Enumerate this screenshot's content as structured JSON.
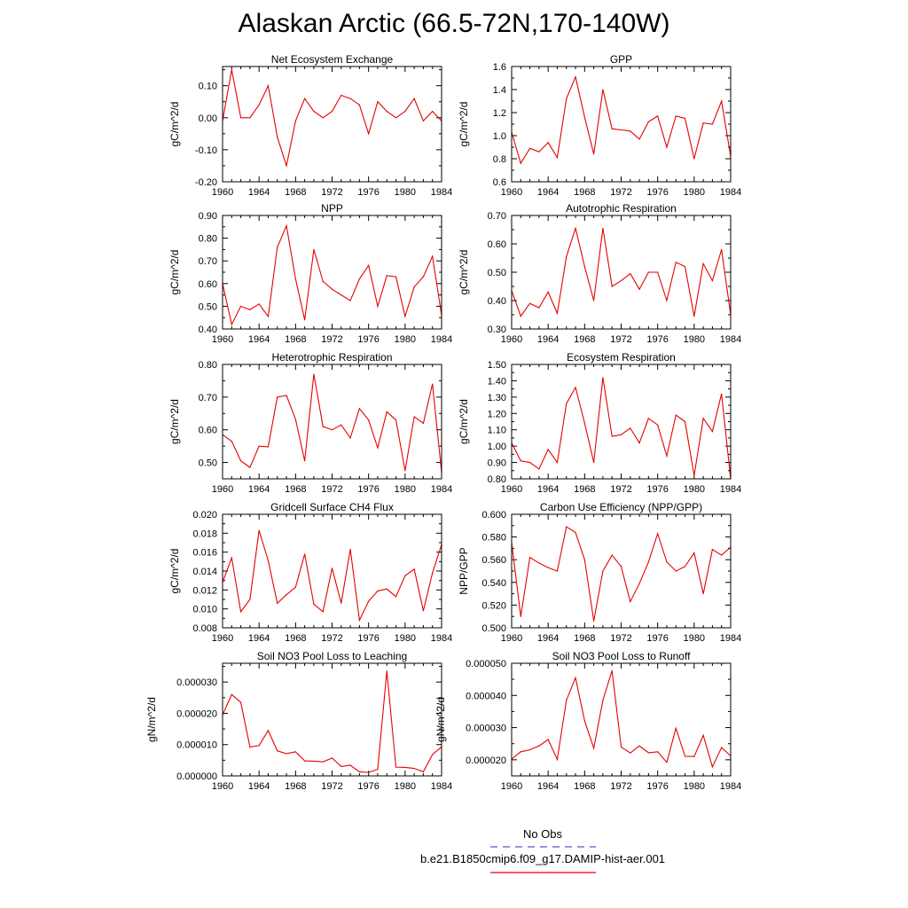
{
  "title": "Alaskan Arctic (66.5-72N,170-140W)",
  "legend": {
    "placement": "bottom",
    "entries": [
      {
        "label": "No Obs",
        "color": "#5555cc",
        "style": "dashed"
      },
      {
        "label": "b.e21.B1850cmip6.f09_g17.DAMIP-hist-aer.001",
        "color": "#e60000",
        "style": "solid"
      }
    ]
  },
  "chart_data": [
    {
      "type": "line",
      "title": "Net Ecosystem Exchange",
      "ylabel": "gC/m^2/d",
      "xlim": [
        1960,
        1984
      ],
      "ylim": [
        -0.2,
        0.16
      ],
      "xticks": [
        "1960",
        "1964",
        "1968",
        "1972",
        "1976",
        "1980",
        "1984"
      ],
      "yticks": [
        "-0.20",
        "-0.10",
        "0.00",
        "0.10"
      ],
      "series": [
        {
          "color": "#e60000",
          "x": [
            1960,
            1961,
            1962,
            1963,
            1964,
            1965,
            1966,
            1967,
            1968,
            1969,
            1970,
            1971,
            1972,
            1973,
            1974,
            1975,
            1976,
            1977,
            1978,
            1979,
            1980,
            1981,
            1982,
            1983,
            1984
          ],
          "values": [
            -0.01,
            0.15,
            0.0,
            0.0,
            0.04,
            0.1,
            -0.06,
            -0.15,
            -0.01,
            0.06,
            0.02,
            0.0,
            0.02,
            0.07,
            0.06,
            0.04,
            -0.05,
            0.05,
            0.02,
            0.0,
            0.02,
            0.06,
            -0.01,
            0.02,
            -0.01
          ]
        }
      ]
    },
    {
      "type": "line",
      "title": "GPP",
      "ylabel": "gC/m^2/d",
      "xlim": [
        1960,
        1984
      ],
      "ylim": [
        0.6,
        1.6
      ],
      "xticks": [
        "1960",
        "1964",
        "1968",
        "1972",
        "1976",
        "1980",
        "1984"
      ],
      "yticks": [
        "0.6",
        "0.8",
        "1.0",
        "1.2",
        "1.4",
        "1.6"
      ],
      "series": [
        {
          "color": "#e60000",
          "x": [
            1960,
            1961,
            1962,
            1963,
            1964,
            1965,
            1966,
            1967,
            1968,
            1969,
            1970,
            1971,
            1972,
            1973,
            1974,
            1975,
            1976,
            1977,
            1978,
            1979,
            1980,
            1981,
            1982,
            1983,
            1984
          ],
          "values": [
            1.03,
            0.76,
            0.89,
            0.86,
            0.94,
            0.81,
            1.32,
            1.51,
            1.16,
            0.84,
            1.4,
            1.06,
            1.05,
            1.04,
            0.97,
            1.12,
            1.17,
            0.9,
            1.17,
            1.15,
            0.8,
            1.11,
            1.1,
            1.3,
            0.82
          ]
        }
      ]
    },
    {
      "type": "line",
      "title": "NPP",
      "ylabel": "gC/m^2/d",
      "xlim": [
        1960,
        1984
      ],
      "ylim": [
        0.4,
        0.9
      ],
      "xticks": [
        "1960",
        "1964",
        "1968",
        "1972",
        "1976",
        "1980",
        "1984"
      ],
      "yticks": [
        "0.40",
        "0.50",
        "0.60",
        "0.70",
        "0.80",
        "0.90"
      ],
      "series": [
        {
          "color": "#e60000",
          "x": [
            1960,
            1961,
            1962,
            1963,
            1964,
            1965,
            1966,
            1967,
            1968,
            1969,
            1970,
            1971,
            1972,
            1973,
            1974,
            1975,
            1976,
            1977,
            1978,
            1979,
            1980,
            1981,
            1982,
            1983,
            1984
          ],
          "values": [
            0.6,
            0.42,
            0.5,
            0.485,
            0.51,
            0.455,
            0.76,
            0.855,
            0.62,
            0.44,
            0.75,
            0.61,
            0.575,
            0.55,
            0.525,
            0.62,
            0.68,
            0.5,
            0.635,
            0.63,
            0.455,
            0.585,
            0.63,
            0.72,
            0.46
          ]
        }
      ]
    },
    {
      "type": "line",
      "title": "Autotrophic Respiration",
      "ylabel": "gC/m^2/d",
      "xlim": [
        1960,
        1984
      ],
      "ylim": [
        0.3,
        0.7
      ],
      "xticks": [
        "1960",
        "1964",
        "1968",
        "1972",
        "1976",
        "1980",
        "1984"
      ],
      "yticks": [
        "0.30",
        "0.40",
        "0.50",
        "0.60",
        "0.70"
      ],
      "series": [
        {
          "color": "#e60000",
          "x": [
            1960,
            1961,
            1962,
            1963,
            1964,
            1965,
            1966,
            1967,
            1968,
            1969,
            1970,
            1971,
            1972,
            1973,
            1974,
            1975,
            1976,
            1977,
            1978,
            1979,
            1980,
            1981,
            1982,
            1983,
            1984
          ],
          "values": [
            0.435,
            0.345,
            0.39,
            0.375,
            0.43,
            0.355,
            0.555,
            0.655,
            0.52,
            0.4,
            0.655,
            0.45,
            0.47,
            0.495,
            0.44,
            0.5,
            0.5,
            0.4,
            0.535,
            0.52,
            0.345,
            0.53,
            0.47,
            0.58,
            0.35
          ]
        }
      ]
    },
    {
      "type": "line",
      "title": "Heterotrophic Respiration",
      "ylabel": "gC/m^2/d",
      "xlim": [
        1960,
        1984
      ],
      "ylim": [
        0.45,
        0.8
      ],
      "xticks": [
        "1960",
        "1964",
        "1968",
        "1972",
        "1976",
        "1980",
        "1984"
      ],
      "yticks": [
        "0.50",
        "0.60",
        "0.70",
        "0.80"
      ],
      "series": [
        {
          "color": "#e60000",
          "x": [
            1960,
            1961,
            1962,
            1963,
            1964,
            1965,
            1966,
            1967,
            1968,
            1969,
            1970,
            1971,
            1972,
            1973,
            1974,
            1975,
            1976,
            1977,
            1978,
            1979,
            1980,
            1981,
            1982,
            1983,
            1984
          ],
          "values": [
            0.585,
            0.565,
            0.505,
            0.485,
            0.55,
            0.548,
            0.7,
            0.705,
            0.632,
            0.505,
            0.77,
            0.61,
            0.6,
            0.615,
            0.575,
            0.665,
            0.63,
            0.545,
            0.655,
            0.63,
            0.475,
            0.64,
            0.62,
            0.74,
            0.47
          ]
        }
      ]
    },
    {
      "type": "line",
      "title": "Ecosystem Respiration",
      "ylabel": "gC/m^2/d",
      "xlim": [
        1960,
        1984
      ],
      "ylim": [
        0.8,
        1.5
      ],
      "xticks": [
        "1960",
        "1964",
        "1968",
        "1972",
        "1976",
        "1980",
        "1984"
      ],
      "yticks": [
        "0.80",
        "0.90",
        "1.00",
        "1.10",
        "1.20",
        "1.30",
        "1.40",
        "1.50"
      ],
      "series": [
        {
          "color": "#e60000",
          "x": [
            1960,
            1961,
            1962,
            1963,
            1964,
            1965,
            1966,
            1967,
            1968,
            1969,
            1970,
            1971,
            1972,
            1973,
            1974,
            1975,
            1976,
            1977,
            1978,
            1979,
            1980,
            1981,
            1982,
            1983,
            1984
          ],
          "values": [
            1.02,
            0.91,
            0.9,
            0.86,
            0.98,
            0.9,
            1.26,
            1.36,
            1.14,
            0.9,
            1.42,
            1.06,
            1.07,
            1.11,
            1.02,
            1.17,
            1.13,
            0.94,
            1.19,
            1.15,
            0.82,
            1.17,
            1.09,
            1.32,
            0.8
          ]
        }
      ]
    },
    {
      "type": "line",
      "title": "Gridcell Surface CH4 Flux",
      "ylabel": "gC/m^2/d",
      "xlim": [
        1960,
        1984
      ],
      "ylim": [
        0.008,
        0.02
      ],
      "xticks": [
        "1960",
        "1964",
        "1968",
        "1972",
        "1976",
        "1980",
        "1984"
      ],
      "yticks": [
        "0.008",
        "0.010",
        "0.012",
        "0.014",
        "0.016",
        "0.018",
        "0.020"
      ],
      "series": [
        {
          "color": "#e60000",
          "x": [
            1960,
            1961,
            1962,
            1963,
            1964,
            1965,
            1966,
            1967,
            1968,
            1969,
            1970,
            1971,
            1972,
            1973,
            1974,
            1975,
            1976,
            1977,
            1978,
            1979,
            1980,
            1981,
            1982,
            1983,
            1984
          ],
          "values": [
            0.0128,
            0.0154,
            0.0097,
            0.011,
            0.0183,
            0.0151,
            0.0106,
            0.0115,
            0.0123,
            0.0158,
            0.0105,
            0.0097,
            0.0143,
            0.0106,
            0.0163,
            0.0088,
            0.0108,
            0.0119,
            0.0121,
            0.0113,
            0.0135,
            0.0142,
            0.0098,
            0.0138,
            0.0168
          ]
        }
      ]
    },
    {
      "type": "line",
      "title": "Carbon Use Efficiency (NPP/GPP)",
      "ylabel": "NPP/GPP",
      "xlim": [
        1960,
        1984
      ],
      "ylim": [
        0.5,
        0.6
      ],
      "xticks": [
        "1960",
        "1964",
        "1968",
        "1972",
        "1976",
        "1980",
        "1984"
      ],
      "yticks": [
        "0.500",
        "0.520",
        "0.540",
        "0.560",
        "0.580",
        "0.600"
      ],
      "series": [
        {
          "color": "#e60000",
          "x": [
            1960,
            1961,
            1962,
            1963,
            1964,
            1965,
            1966,
            1967,
            1968,
            1969,
            1970,
            1971,
            1972,
            1973,
            1974,
            1975,
            1976,
            1977,
            1978,
            1979,
            1980,
            1981,
            1982,
            1983,
            1984
          ],
          "values": [
            0.575,
            0.51,
            0.562,
            0.557,
            0.553,
            0.55,
            0.589,
            0.584,
            0.56,
            0.506,
            0.55,
            0.564,
            0.554,
            0.523,
            0.539,
            0.558,
            0.583,
            0.558,
            0.55,
            0.554,
            0.566,
            0.53,
            0.569,
            0.564,
            0.571
          ]
        }
      ]
    },
    {
      "type": "line",
      "title": "Soil NO3 Pool Loss to Leaching",
      "ylabel": "gN/m^2/d",
      "xlim": [
        1960,
        1984
      ],
      "ylim": [
        0.0,
        3.6e-05
      ],
      "xticks": [
        "1960",
        "1964",
        "1968",
        "1972",
        "1976",
        "1980",
        "1984"
      ],
      "yticks": [
        "0.000000",
        "0.000010",
        "0.000020",
        "0.000030"
      ],
      "series": [
        {
          "color": "#e60000",
          "x": [
            1960,
            1961,
            1962,
            1963,
            1964,
            1965,
            1966,
            1967,
            1968,
            1969,
            1970,
            1971,
            1972,
            1973,
            1974,
            1975,
            1976,
            1977,
            1978,
            1979,
            1980,
            1981,
            1982,
            1983,
            1984
          ],
          "values": [
            1.95e-05,
            2.6e-05,
            2.35e-05,
            9.2e-06,
            9.7e-06,
            1.45e-05,
            8e-06,
            7.1e-06,
            7.7e-06,
            4.8e-06,
            4.7e-06,
            4.5e-06,
            5.7e-06,
            3e-06,
            3.4e-06,
            1.3e-06,
            1.1e-06,
            2.1e-06,
            3.35e-05,
            2.8e-06,
            2.7e-06,
            2.4e-06,
            1.3e-06,
            6.8e-06,
            9.3e-06
          ]
        }
      ]
    },
    {
      "type": "line",
      "title": "Soil NO3 Pool Loss to Runoff",
      "ylabel": "gN/m^2/d",
      "xlim": [
        1960,
        1984
      ],
      "ylim": [
        1.5e-05,
        5e-05
      ],
      "xticks": [
        "1960",
        "1964",
        "1968",
        "1972",
        "1976",
        "1980",
        "1984"
      ],
      "yticks": [
        "0.000020",
        "0.000030",
        "0.000040",
        "0.000050"
      ],
      "series": [
        {
          "color": "#e60000",
          "x": [
            1960,
            1961,
            1962,
            1963,
            1964,
            1965,
            1966,
            1967,
            1968,
            1969,
            1970,
            1971,
            1972,
            1973,
            1974,
            1975,
            1976,
            1977,
            1978,
            1979,
            1980,
            1981,
            1982,
            1983,
            1984
          ],
          "values": [
            2.02e-05,
            2.25e-05,
            2.31e-05,
            2.43e-05,
            2.63e-05,
            2.01e-05,
            3.85e-05,
            4.55e-05,
            3.21e-05,
            2.36e-05,
            3.85e-05,
            4.77e-05,
            2.4e-05,
            2.21e-05,
            2.43e-05,
            2.22e-05,
            2.25e-05,
            1.92e-05,
            2.98e-05,
            2.11e-05,
            2.1e-05,
            2.76e-05,
            1.78e-05,
            2.38e-05,
            2.12e-05
          ]
        }
      ]
    }
  ]
}
